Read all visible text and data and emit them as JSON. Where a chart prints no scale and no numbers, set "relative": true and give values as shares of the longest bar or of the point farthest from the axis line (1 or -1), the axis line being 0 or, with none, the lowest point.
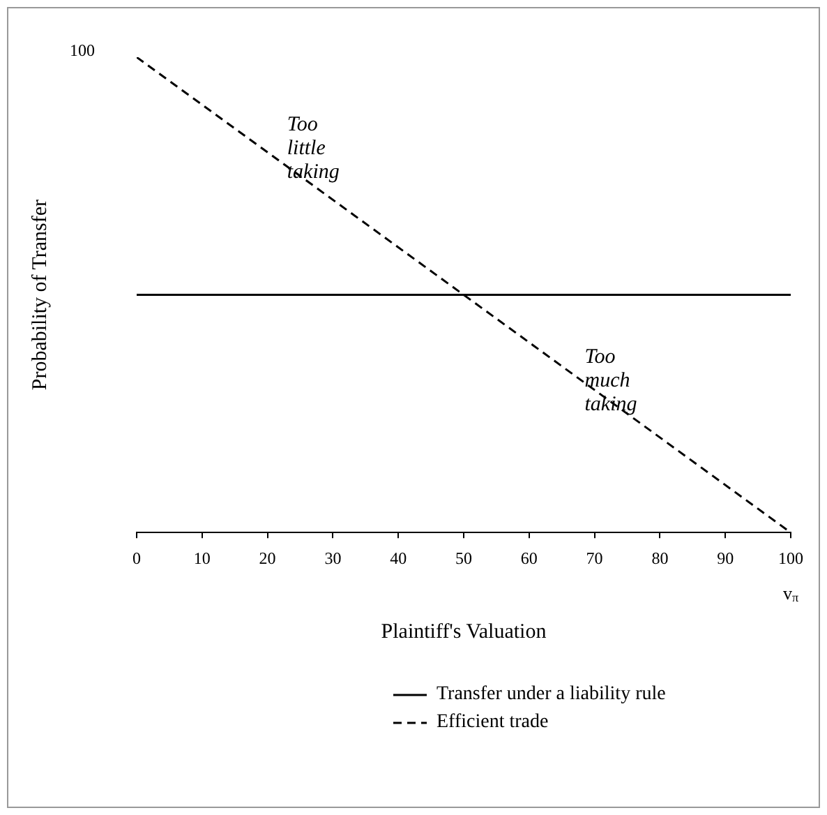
{
  "chart_data": {
    "type": "line",
    "xlabel": "Plaintiff's Valuation",
    "ylabel": "Probability of Transfer",
    "x": [
      0,
      100
    ],
    "series": [
      {
        "name": "Transfer under a liability rule",
        "color": "#000000",
        "values": [
          0.5,
          0.5
        ],
        "line_style": "solid"
      },
      {
        "name": "Efficient trade",
        "color": "#000000",
        "values": [
          1,
          0
        ],
        "line_style": "dashed"
      }
    ],
    "relative": true,
    "xlim": [
      0,
      100
    ],
    "xticks": [
      0,
      10,
      20,
      30,
      40,
      50,
      60,
      70,
      80,
      90,
      100
    ],
    "grid": false,
    "legend": "bottom",
    "marker": "none",
    "annotations": [
      "100",
      "Too little taking",
      "Too much taking",
      "v$_{π}$"
    ]
  }
}
